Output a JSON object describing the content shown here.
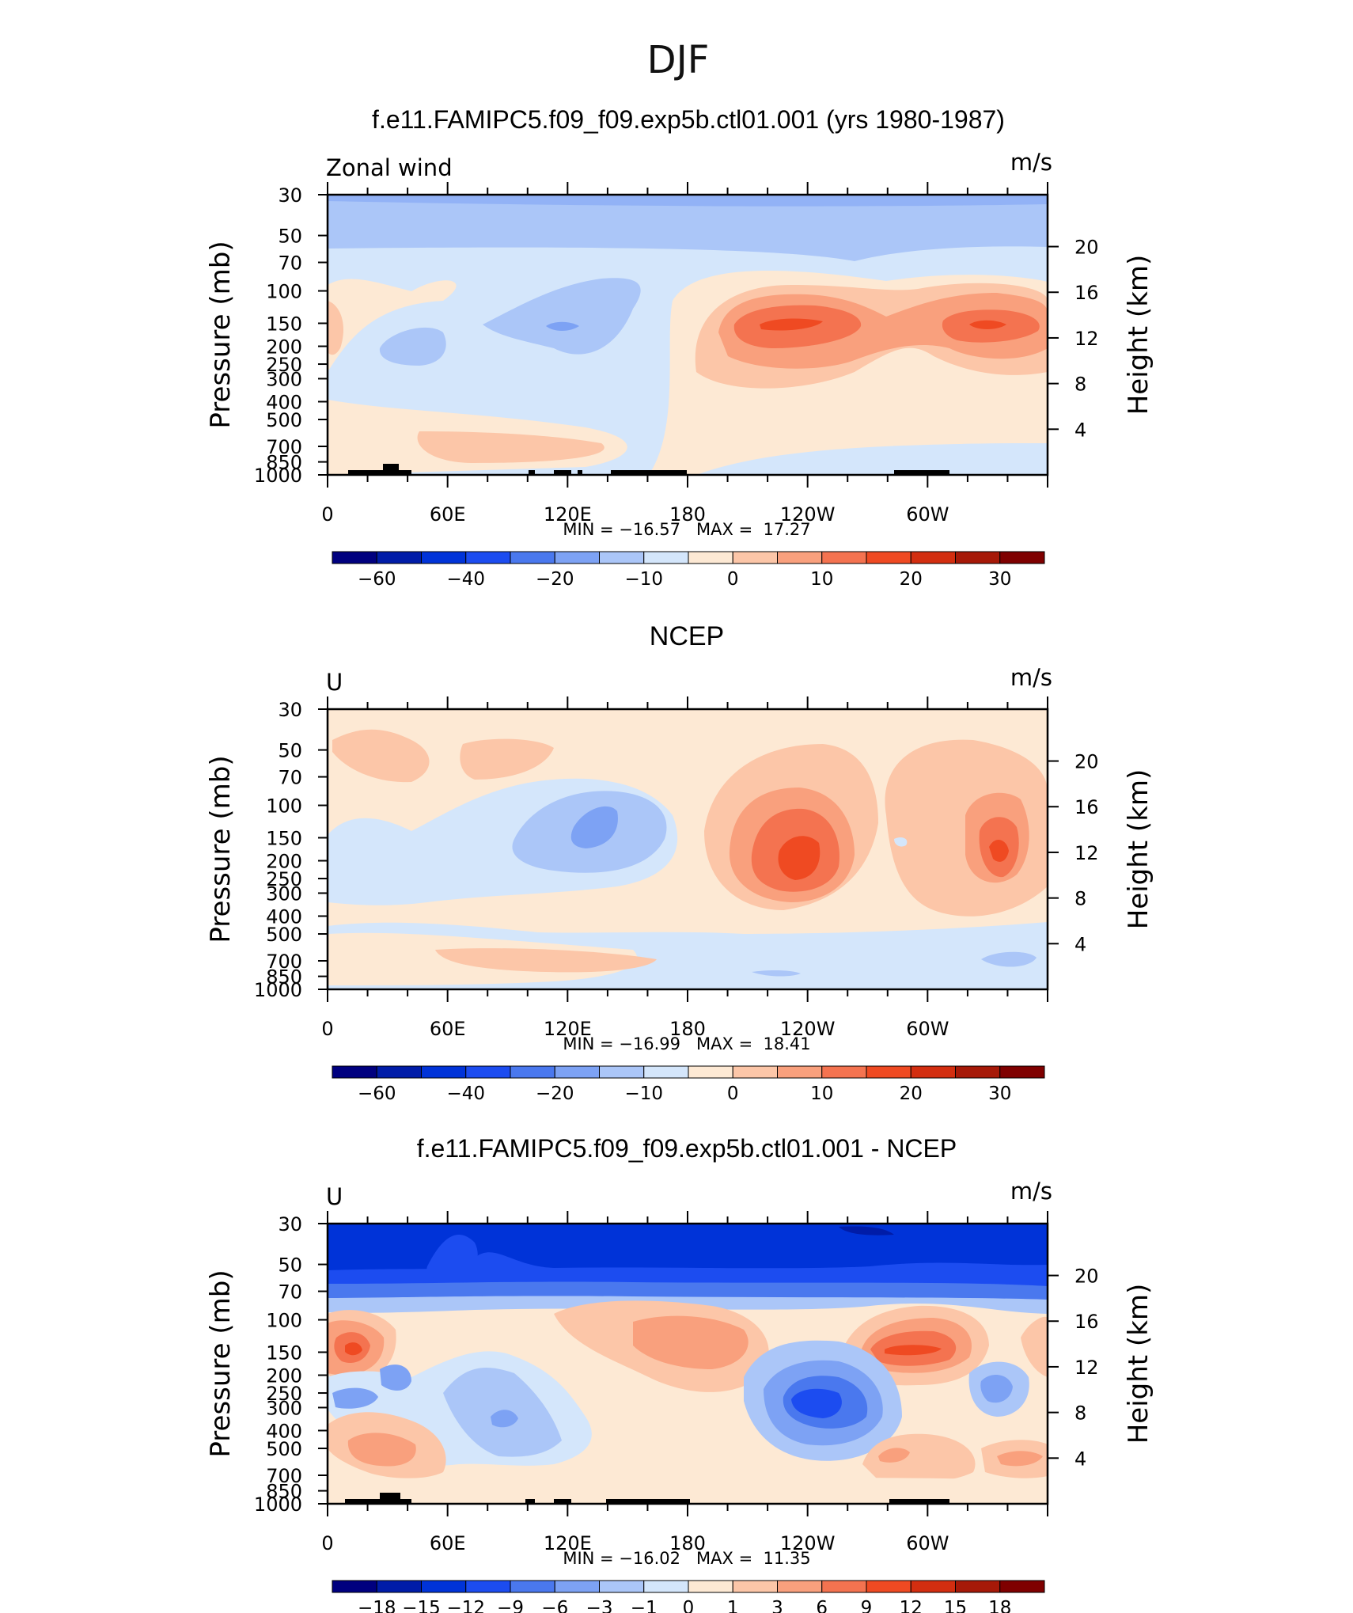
{
  "figure": {
    "season": "DJF"
  },
  "colors": {
    "levels_main": [
      "#00007f",
      "#001ca8",
      "#0033d8",
      "#1c4cf0",
      "#4a78ee",
      "#7da2f4",
      "#abc6f8",
      "#d4e6fb",
      "#fde9d4",
      "#fcc6a8",
      "#f9a07d",
      "#f47350",
      "#ef4a22",
      "#d32e10",
      "#a61908",
      "#7f0000"
    ],
    "levels_diff": [
      "#00007f",
      "#001ca8",
      "#0033d8",
      "#1c4cf0",
      "#4a78ee",
      "#7da2f4",
      "#abc6f8",
      "#d4e6fb",
      "#fde9d4",
      "#fcc6a8",
      "#f9a07d",
      "#f47350",
      "#ef4a22",
      "#d32e10",
      "#a61908",
      "#7f0000"
    ]
  },
  "chart_data": [
    {
      "type": "heatmap",
      "title": "f.e11.FAMIPC5.f09_f09.exp5b.ctl01.001 (yrs 1980-1987)",
      "left_label": "Zonal wind",
      "units": "m/s",
      "ylabel": "Pressure (mb)",
      "ylabel_right": "Height (km)",
      "yticks": [
        "30",
        "50",
        "70",
        "100",
        "150",
        "200",
        "250",
        "300",
        "400",
        "500",
        "700",
        "850",
        "1000"
      ],
      "yticks_right": [
        "20",
        "16",
        "12",
        "8",
        "4"
      ],
      "xticks": [
        "0",
        "60E",
        "120E",
        "180",
        "120W",
        "60W"
      ],
      "stats": "MIN = −16.57   MAX =  17.27",
      "colorbar_labels": [
        "−60",
        "−40",
        "−20",
        "−10",
        "0",
        "10",
        "20",
        "30"
      ],
      "colorbar_levels": [
        -70,
        -60,
        -50,
        -40,
        -30,
        -20,
        -15,
        -10,
        -5,
        0,
        5,
        10,
        15,
        20,
        25,
        30,
        35
      ],
      "min": -16.57,
      "max": 17.27,
      "features": [
        {
          "lon": 0,
          "p": 30,
          "value": -8
        },
        {
          "lon": 160,
          "p": 30,
          "value": -10
        },
        {
          "lon": 230,
          "p": 60,
          "value": -12
        },
        {
          "lon": 45,
          "p": 200,
          "value": -10
        },
        {
          "lon": 117,
          "p": 150,
          "value": -12
        },
        {
          "lon": 240,
          "p": 150,
          "value": 17
        },
        {
          "lon": 325,
          "p": 150,
          "value": 15
        },
        {
          "lon": 0,
          "p": 150,
          "value": 8
        },
        {
          "lon": 120,
          "p": 700,
          "value": 3
        }
      ]
    },
    {
      "type": "heatmap",
      "title": "NCEP",
      "left_label": "U",
      "units": "m/s",
      "ylabel": "Pressure (mb)",
      "ylabel_right": "Height (km)",
      "yticks": [
        "30",
        "50",
        "70",
        "100",
        "150",
        "200",
        "250",
        "300",
        "400",
        "500",
        "700",
        "850",
        "1000"
      ],
      "yticks_right": [
        "20",
        "16",
        "12",
        "8",
        "4"
      ],
      "xticks": [
        "0",
        "60E",
        "120E",
        "180",
        "120W",
        "60W"
      ],
      "stats": "MIN = −16.99   MAX =  18.41",
      "colorbar_labels": [
        "−60",
        "−40",
        "−20",
        "−10",
        "0",
        "10",
        "20",
        "30"
      ],
      "colorbar_levels": [
        -70,
        -60,
        -50,
        -40,
        -30,
        -20,
        -15,
        -10,
        -5,
        0,
        5,
        10,
        15,
        20,
        25,
        30,
        35
      ],
      "min": -16.99,
      "max": 18.41,
      "features": [
        {
          "lon": 30,
          "p": 50,
          "value": 4
        },
        {
          "lon": 100,
          "p": 50,
          "value": 4
        },
        {
          "lon": 135,
          "p": 130,
          "value": -14
        },
        {
          "lon": 235,
          "p": 180,
          "value": 18
        },
        {
          "lon": 330,
          "p": 180,
          "value": 16
        },
        {
          "lon": 220,
          "p": 850,
          "value": -3
        },
        {
          "lon": 340,
          "p": 700,
          "value": -6
        }
      ]
    },
    {
      "type": "heatmap",
      "title": "f.e11.FAMIPC5.f09_f09.exp5b.ctl01.001 - NCEP",
      "left_label": "U",
      "units": "m/s",
      "ylabel": "Pressure (mb)",
      "ylabel_right": "Height (km)",
      "yticks": [
        "30",
        "50",
        "70",
        "100",
        "150",
        "200",
        "250",
        "300",
        "400",
        "500",
        "700",
        "850",
        "1000"
      ],
      "yticks_right": [
        "20",
        "16",
        "12",
        "8",
        "4"
      ],
      "xticks": [
        "0",
        "60E",
        "120E",
        "180",
        "120W",
        "60W"
      ],
      "stats": "MIN = −16.02   MAX =  11.35",
      "colorbar_labels": [
        "−18",
        "−15",
        "−12",
        "−9",
        "−6",
        "−3",
        "−1",
        "0",
        "1",
        "3",
        "6",
        "9",
        "12",
        "15",
        "18"
      ],
      "colorbar_levels": [
        -21,
        -18,
        -15,
        -12,
        -9,
        -6,
        -3,
        -1,
        0,
        1,
        3,
        6,
        9,
        12,
        15,
        18,
        21
      ],
      "min": -16.02,
      "max": 11.35,
      "features": [
        {
          "lon": 60,
          "p": 30,
          "value": -12
        },
        {
          "lon": 180,
          "p": 30,
          "value": -16
        },
        {
          "lon": 15,
          "p": 150,
          "value": 11
        },
        {
          "lon": 260,
          "p": 150,
          "value": 11
        },
        {
          "lon": 170,
          "p": 150,
          "value": 6
        },
        {
          "lon": 250,
          "p": 300,
          "value": -12
        },
        {
          "lon": 40,
          "p": 250,
          "value": -6
        },
        {
          "lon": 90,
          "p": 400,
          "value": -6
        },
        {
          "lon": 30,
          "p": 500,
          "value": 4
        },
        {
          "lon": 275,
          "p": 700,
          "value": 3
        }
      ]
    }
  ]
}
